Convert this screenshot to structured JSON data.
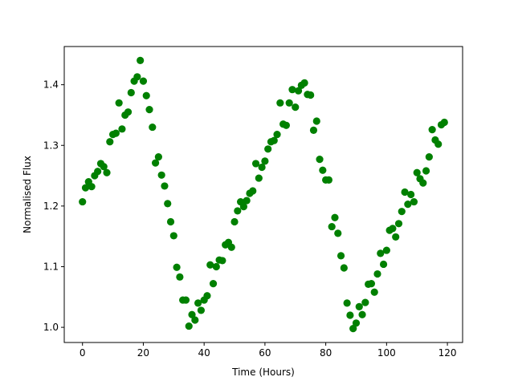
{
  "chart_data": {
    "type": "scatter",
    "title": "",
    "xlabel": "Time (Hours)",
    "ylabel": "Normalised Flux",
    "xlim": [
      -6,
      125
    ],
    "ylim": [
      0.975,
      1.463
    ],
    "xticks": [
      0,
      20,
      40,
      60,
      80,
      100,
      120
    ],
    "xtick_labels": [
      "0",
      "20",
      "40",
      "60",
      "80",
      "100",
      "120"
    ],
    "yticks": [
      1.0,
      1.1,
      1.2,
      1.3,
      1.4
    ],
    "ytick_labels": [
      "1.0",
      "1.1",
      "1.2",
      "1.3",
      "1.4"
    ],
    "grid": false,
    "legend": "none",
    "marker_color": "#008000",
    "series": [
      {
        "x": [
          0,
          1,
          2,
          3,
          4,
          5,
          6,
          7,
          8,
          9,
          10,
          11,
          12,
          13,
          14,
          15,
          16,
          17,
          18,
          19,
          20,
          21,
          22,
          23,
          24,
          25,
          26,
          27,
          28,
          29,
          30,
          31,
          32,
          33,
          34,
          35,
          36,
          37,
          38,
          39,
          40,
          41,
          42,
          43,
          44,
          45,
          46,
          47,
          48,
          49,
          50,
          51,
          52,
          53,
          54,
          55,
          56,
          57,
          58,
          59,
          60,
          61,
          62,
          63,
          64,
          65,
          66,
          67,
          68,
          69,
          70,
          71,
          72,
          73,
          74,
          75,
          76,
          77,
          78,
          79,
          80,
          81,
          82,
          83,
          84,
          85,
          86,
          87,
          88,
          89,
          90,
          91,
          92,
          93,
          94,
          95,
          96,
          97,
          98,
          99,
          100,
          101,
          102,
          103,
          104,
          105,
          106,
          107,
          108,
          109,
          110,
          111,
          112,
          113,
          114,
          115,
          116,
          117,
          118,
          119
        ],
        "y": [
          1.207,
          1.23,
          1.24,
          1.232,
          1.25,
          1.257,
          1.27,
          1.265,
          1.255,
          1.306,
          1.318,
          1.32,
          1.37,
          1.327,
          1.35,
          1.355,
          1.387,
          1.406,
          1.413,
          1.44,
          1.406,
          1.382,
          1.359,
          1.33,
          1.271,
          1.281,
          1.251,
          1.233,
          1.204,
          1.174,
          1.151,
          1.099,
          1.083,
          1.045,
          1.045,
          1.002,
          1.021,
          1.012,
          1.04,
          1.028,
          1.045,
          1.052,
          1.103,
          1.072,
          1.1,
          1.111,
          1.11,
          1.136,
          1.14,
          1.132,
          1.174,
          1.192,
          1.207,
          1.199,
          1.209,
          1.221,
          1.225,
          1.27,
          1.246,
          1.264,
          1.274,
          1.294,
          1.306,
          1.308,
          1.318,
          1.37,
          1.335,
          1.333,
          1.37,
          1.392,
          1.363,
          1.39,
          1.399,
          1.403,
          1.384,
          1.383,
          1.325,
          1.34,
          1.277,
          1.259,
          1.243,
          1.243,
          1.166,
          1.181,
          1.155,
          1.118,
          1.098,
          1.04,
          1.02,
          0.998,
          1.007,
          1.034,
          1.021,
          1.041,
          1.071,
          1.072,
          1.058,
          1.088,
          1.122,
          1.104,
          1.127,
          1.16,
          1.163,
          1.149,
          1.171,
          1.191,
          1.223,
          1.203,
          1.219,
          1.207,
          1.255,
          1.245,
          1.238,
          1.258,
          1.281,
          1.326,
          1.309,
          1.302,
          1.334,
          1.338
        ]
      }
    ]
  }
}
